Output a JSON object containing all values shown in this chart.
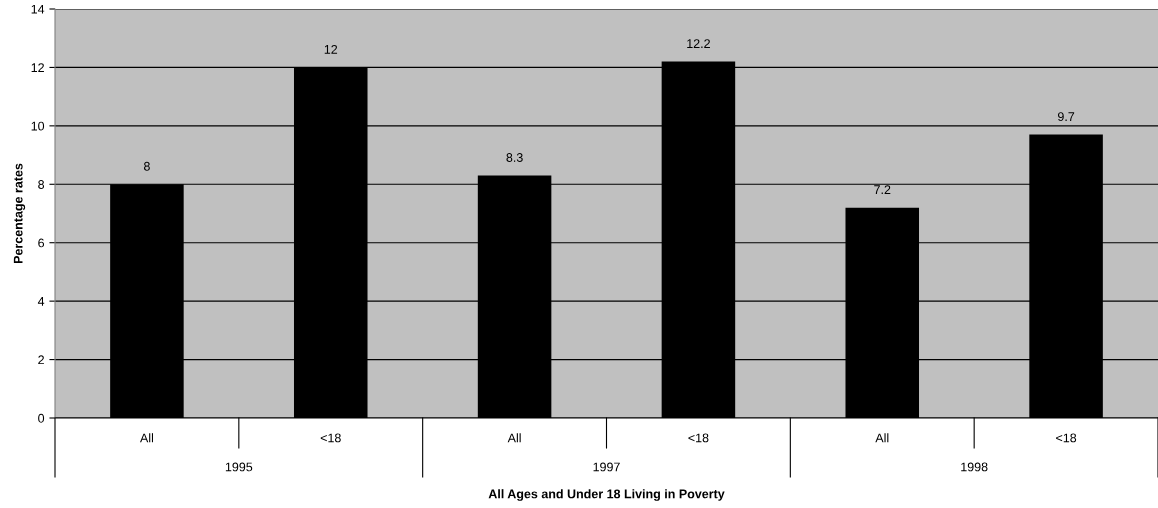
{
  "chart_data": {
    "type": "bar",
    "xlabel": "All Ages and Under 18 Living in Poverty",
    "ylabel": "Percentage rates",
    "categories": [
      "All",
      "<18",
      "All",
      "<18",
      "All",
      "<18"
    ],
    "values": [
      8,
      12,
      8.3,
      12.2,
      7.2,
      9.7
    ],
    "color": "#000000",
    "ylim": [
      0,
      14
    ],
    "yticks": [
      0,
      2,
      4,
      6,
      8,
      10,
      12,
      14
    ],
    "grid": "y",
    "data_labels": true,
    "annotations": [
      "1995",
      "1997",
      "1998"
    ]
  }
}
